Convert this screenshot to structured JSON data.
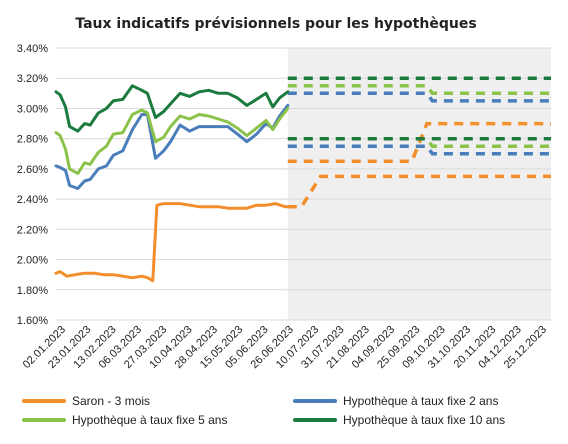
{
  "chart_data": {
    "type": "line",
    "title": "Taux indicatifs prévisionnels pour les hypothèques",
    "ylim": [
      0.016,
      0.034
    ],
    "yticks": [
      "1.60%",
      "1.80%",
      "2.00%",
      "2.20%",
      "2.40%",
      "2.60%",
      "2.80%",
      "3.00%",
      "3.20%",
      "3.40%"
    ],
    "ytick_values": [
      0.016,
      0.018,
      0.02,
      0.022,
      0.024,
      0.026,
      0.028,
      0.03,
      0.032,
      0.034
    ],
    "xtick_labels": [
      "02.01.2023",
      "23.01.2023",
      "13.02.2023",
      "06.03.2023",
      "27.03.2023",
      "10.04.2023",
      "28.04.2023",
      "15.05.2023",
      "05.06.2023",
      "26.06.2023",
      "10.07.2023",
      "31.07.2023",
      "21.08.2023",
      "04.09.2023",
      "25.09.2023",
      "09.10.2023",
      "31.10.2023",
      "20.11.2023",
      "04.12.2023",
      "25.12.2023"
    ],
    "x_range": [
      "2023-01-02",
      "2023-12-31"
    ],
    "forecast_start": "2023-06-21",
    "grid": "horizontal",
    "legend_position": "bottom",
    "series": [
      {
        "name": "Saron - 3 mois",
        "color": "#F28E2B",
        "actual": [
          [
            "2023-01-02",
            0.0191
          ],
          [
            "2023-01-05",
            0.0192
          ],
          [
            "2023-01-10",
            0.0189
          ],
          [
            "2023-01-16",
            0.019
          ],
          [
            "2023-01-23",
            0.0191
          ],
          [
            "2023-01-30",
            0.0191
          ],
          [
            "2023-02-06",
            0.019
          ],
          [
            "2023-02-13",
            0.019
          ],
          [
            "2023-02-20",
            0.0189
          ],
          [
            "2023-02-27",
            0.0188
          ],
          [
            "2023-03-06",
            0.0189
          ],
          [
            "2023-03-10",
            0.0188
          ],
          [
            "2023-03-14",
            0.0186
          ],
          [
            "2023-03-17",
            0.0236
          ],
          [
            "2023-03-22",
            0.0237
          ],
          [
            "2023-03-27",
            0.0237
          ],
          [
            "2023-04-03",
            0.0237
          ],
          [
            "2023-04-10",
            0.0236
          ],
          [
            "2023-04-17",
            0.0235
          ],
          [
            "2023-04-24",
            0.0235
          ],
          [
            "2023-05-01",
            0.0235
          ],
          [
            "2023-05-08",
            0.0234
          ],
          [
            "2023-05-15",
            0.0234
          ],
          [
            "2023-05-22",
            0.0234
          ],
          [
            "2023-05-29",
            0.0236
          ],
          [
            "2023-06-05",
            0.0236
          ],
          [
            "2023-06-12",
            0.0237
          ],
          [
            "2023-06-19",
            0.0235
          ],
          [
            "2023-06-26",
            0.0235
          ]
        ],
        "forecast": [
          [
            [
              "2023-06-21",
              0.0235
            ],
            [
              "2023-07-01",
              0.0235
            ],
            [
              "2023-07-15",
              0.0255
            ],
            [
              "2023-12-31",
              0.0255
            ]
          ],
          [
            [
              "2023-06-21",
              0.0265
            ],
            [
              "2023-09-20",
              0.0265
            ],
            [
              "2023-10-01",
              0.029
            ],
            [
              "2023-12-31",
              0.029
            ]
          ]
        ]
      },
      {
        "name": "Hypothèque à taux fixe 2 ans",
        "color": "#4A7EBB",
        "actual": [
          [
            "2023-01-02",
            0.0262
          ],
          [
            "2023-01-05",
            0.0261
          ],
          [
            "2023-01-09",
            0.0259
          ],
          [
            "2023-01-12",
            0.0249
          ],
          [
            "2023-01-18",
            0.0247
          ],
          [
            "2023-01-23",
            0.0252
          ],
          [
            "2023-01-27",
            0.0253
          ],
          [
            "2023-02-02",
            0.026
          ],
          [
            "2023-02-08",
            0.0262
          ],
          [
            "2023-02-13",
            0.0269
          ],
          [
            "2023-02-20",
            0.0272
          ],
          [
            "2023-02-27",
            0.0286
          ],
          [
            "2023-03-06",
            0.0296
          ],
          [
            "2023-03-10",
            0.0296
          ],
          [
            "2023-03-16",
            0.0267
          ],
          [
            "2023-03-22",
            0.0272
          ],
          [
            "2023-03-27",
            0.0278
          ],
          [
            "2023-04-03",
            0.0289
          ],
          [
            "2023-04-10",
            0.0285
          ],
          [
            "2023-04-17",
            0.0288
          ],
          [
            "2023-04-24",
            0.0288
          ],
          [
            "2023-05-01",
            0.0288
          ],
          [
            "2023-05-08",
            0.0288
          ],
          [
            "2023-05-15",
            0.0283
          ],
          [
            "2023-05-22",
            0.0278
          ],
          [
            "2023-05-29",
            0.0283
          ],
          [
            "2023-06-05",
            0.029
          ],
          [
            "2023-06-10",
            0.0287
          ],
          [
            "2023-06-15",
            0.0295
          ],
          [
            "2023-06-21",
            0.0302
          ]
        ],
        "forecast": [
          [
            [
              "2023-06-21",
              0.031
            ],
            [
              "2023-10-01",
              0.031
            ],
            [
              "2023-10-05",
              0.0305
            ],
            [
              "2023-12-31",
              0.0305
            ]
          ],
          [
            [
              "2023-06-21",
              0.0275
            ],
            [
              "2023-10-01",
              0.0275
            ],
            [
              "2023-10-05",
              0.027
            ],
            [
              "2023-12-31",
              0.027
            ]
          ]
        ]
      },
      {
        "name": "Hypothèque à taux fixe 5 ans",
        "color": "#8BC34A",
        "actual": [
          [
            "2023-01-02",
            0.0284
          ],
          [
            "2023-01-05",
            0.0282
          ],
          [
            "2023-01-09",
            0.0273
          ],
          [
            "2023-01-12",
            0.026
          ],
          [
            "2023-01-18",
            0.0257
          ],
          [
            "2023-01-23",
            0.0264
          ],
          [
            "2023-01-27",
            0.0263
          ],
          [
            "2023-02-02",
            0.0271
          ],
          [
            "2023-02-08",
            0.0275
          ],
          [
            "2023-02-13",
            0.0283
          ],
          [
            "2023-02-20",
            0.0284
          ],
          [
            "2023-02-27",
            0.0296
          ],
          [
            "2023-03-06",
            0.0299
          ],
          [
            "2023-03-10",
            0.0297
          ],
          [
            "2023-03-16",
            0.0278
          ],
          [
            "2023-03-22",
            0.0281
          ],
          [
            "2023-03-27",
            0.0288
          ],
          [
            "2023-04-03",
            0.0295
          ],
          [
            "2023-04-10",
            0.0293
          ],
          [
            "2023-04-17",
            0.0296
          ],
          [
            "2023-04-24",
            0.0295
          ],
          [
            "2023-05-01",
            0.0293
          ],
          [
            "2023-05-08",
            0.0291
          ],
          [
            "2023-05-15",
            0.0287
          ],
          [
            "2023-05-22",
            0.0282
          ],
          [
            "2023-05-29",
            0.0287
          ],
          [
            "2023-06-05",
            0.0292
          ],
          [
            "2023-06-10",
            0.0286
          ],
          [
            "2023-06-15",
            0.0293
          ],
          [
            "2023-06-21",
            0.03
          ]
        ],
        "forecast": [
          [
            [
              "2023-06-21",
              0.0315
            ],
            [
              "2023-10-01",
              0.0315
            ],
            [
              "2023-10-05",
              0.031
            ],
            [
              "2023-12-31",
              0.031
            ]
          ],
          [
            [
              "2023-06-21",
              0.028
            ],
            [
              "2023-10-01",
              0.028
            ],
            [
              "2023-10-05",
              0.0275
            ],
            [
              "2023-12-31",
              0.0275
            ]
          ]
        ]
      },
      {
        "name": "Hypothèque à taux fixe 10 ans",
        "color": "#1B7A3E",
        "actual": [
          [
            "2023-01-02",
            0.0311
          ],
          [
            "2023-01-05",
            0.0309
          ],
          [
            "2023-01-09",
            0.0301
          ],
          [
            "2023-01-12",
            0.0288
          ],
          [
            "2023-01-18",
            0.0285
          ],
          [
            "2023-01-23",
            0.029
          ],
          [
            "2023-01-27",
            0.0289
          ],
          [
            "2023-02-02",
            0.0297
          ],
          [
            "2023-02-08",
            0.03
          ],
          [
            "2023-02-13",
            0.0305
          ],
          [
            "2023-02-20",
            0.0306
          ],
          [
            "2023-02-27",
            0.0315
          ],
          [
            "2023-03-06",
            0.0312
          ],
          [
            "2023-03-10",
            0.031
          ],
          [
            "2023-03-16",
            0.0294
          ],
          [
            "2023-03-22",
            0.0298
          ],
          [
            "2023-03-27",
            0.0303
          ],
          [
            "2023-04-03",
            0.031
          ],
          [
            "2023-04-10",
            0.0308
          ],
          [
            "2023-04-17",
            0.0311
          ],
          [
            "2023-04-24",
            0.0312
          ],
          [
            "2023-05-01",
            0.031
          ],
          [
            "2023-05-08",
            0.031
          ],
          [
            "2023-05-15",
            0.0307
          ],
          [
            "2023-05-22",
            0.0302
          ],
          [
            "2023-05-29",
            0.0306
          ],
          [
            "2023-06-05",
            0.031
          ],
          [
            "2023-06-10",
            0.0301
          ],
          [
            "2023-06-15",
            0.0307
          ],
          [
            "2023-06-21",
            0.0311
          ]
        ],
        "forecast": [
          [
            [
              "2023-06-21",
              0.032
            ],
            [
              "2023-12-31",
              0.032
            ]
          ],
          [
            [
              "2023-06-21",
              0.028
            ],
            [
              "2023-12-31",
              0.028
            ]
          ]
        ]
      }
    ]
  }
}
